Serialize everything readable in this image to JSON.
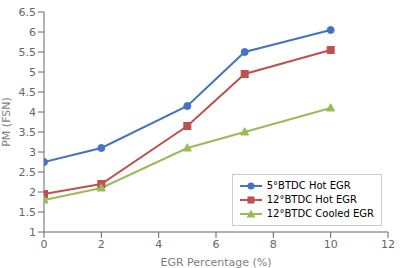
{
  "chart_data": {
    "type": "line",
    "xlabel": "EGR Percentage (%)",
    "ylabel": "PM (FSN)",
    "x": [
      0,
      2,
      5,
      7,
      10
    ],
    "series": [
      {
        "name": "5°BTDC Hot EGR",
        "color": "#4472C4",
        "marker": "circle",
        "values": [
          2.75,
          3.1,
          4.15,
          5.5,
          6.05
        ]
      },
      {
        "name": "12°BTDC Hot EGR",
        "color": "#C0504D",
        "marker": "square",
        "values": [
          1.95,
          2.2,
          3.65,
          4.95,
          5.55
        ]
      },
      {
        "name": "12°BTDC Cooled EGR",
        "color": "#9BBB59",
        "marker": "triangle",
        "values": [
          1.8,
          2.1,
          3.1,
          3.5,
          4.1
        ]
      }
    ],
    "xlim": [
      0,
      12
    ],
    "ylim": [
      1.0,
      6.5
    ],
    "xticks": [
      0,
      2,
      4,
      6,
      8,
      10,
      12
    ],
    "yticks": [
      1,
      1.5,
      2,
      2.5,
      3,
      3.5,
      4,
      4.5,
      5,
      5.5,
      6,
      6.5
    ],
    "legend": "lower right",
    "grid": false
  }
}
